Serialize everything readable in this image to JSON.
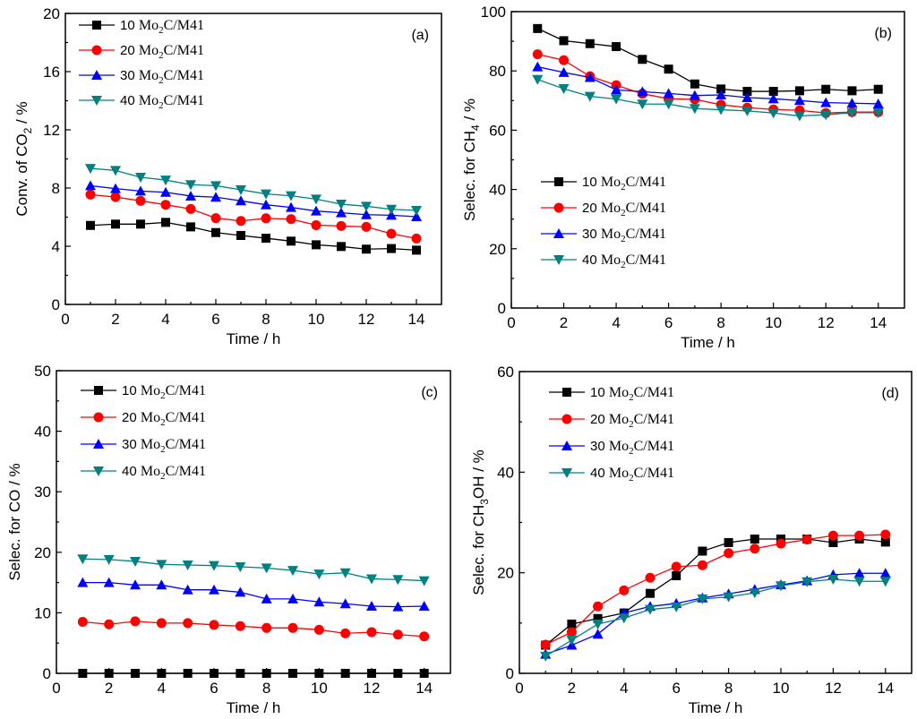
{
  "chart_data": [
    {
      "panel": "(a)",
      "type": "line",
      "xlabel": "Time / h",
      "ylabel": {
        "main": "Conv. of CO",
        "sub": "2",
        "suffix": " / %"
      },
      "xlim": [
        0,
        15
      ],
      "ylim": [
        0,
        20
      ],
      "xticks": [
        0,
        2,
        4,
        6,
        8,
        10,
        12,
        14
      ],
      "yticks": [
        0,
        4,
        8,
        12,
        16,
        20
      ],
      "legend_position": "top-left",
      "x": [
        1,
        2,
        3,
        4,
        5,
        6,
        7,
        8,
        9,
        10,
        11,
        12,
        13,
        14
      ],
      "series": [
        {
          "name": "10 Mo2C/M41",
          "values": [
            5.43,
            5.52,
            5.52,
            5.64,
            5.33,
            4.94,
            4.74,
            4.55,
            4.35,
            4.1,
            3.98,
            3.8,
            3.84,
            3.73
          ]
        },
        {
          "name": "20 Mo2C/M41",
          "values": [
            7.55,
            7.38,
            7.12,
            6.85,
            6.56,
            5.93,
            5.74,
            5.92,
            5.86,
            5.45,
            5.39,
            5.33,
            4.86,
            4.53
          ]
        },
        {
          "name": "30 Mo2C/M41",
          "values": [
            8.16,
            7.96,
            7.79,
            7.71,
            7.45,
            7.37,
            7.12,
            6.85,
            6.67,
            6.42,
            6.3,
            6.17,
            6.13,
            6.03
          ]
        },
        {
          "name": "40 Mo2C/M41",
          "values": [
            9.35,
            9.21,
            8.74,
            8.55,
            8.23,
            8.16,
            7.88,
            7.59,
            7.47,
            7.24,
            6.89,
            6.75,
            6.54,
            6.46
          ]
        }
      ]
    },
    {
      "panel": "(b)",
      "type": "line",
      "xlabel": "Time / h",
      "ylabel": {
        "main": "Selec. for CH",
        "sub": "4",
        "suffix": " / %"
      },
      "xlim": [
        0,
        15
      ],
      "ylim": [
        0,
        100
      ],
      "xticks": [
        0,
        2,
        4,
        6,
        8,
        10,
        12,
        14
      ],
      "yticks": [
        0,
        20,
        40,
        60,
        80,
        100
      ],
      "legend_position": "center-left",
      "x": [
        1,
        2,
        3,
        4,
        5,
        6,
        7,
        8,
        9,
        10,
        11,
        12,
        13,
        14
      ],
      "series": [
        {
          "name": "10 Mo2C/M41",
          "values": [
            94.3,
            90.2,
            89.2,
            88.2,
            83.9,
            80.6,
            75.6,
            73.9,
            73.1,
            73.1,
            73.3,
            73.8,
            73.3,
            73.8
          ]
        },
        {
          "name": "20 Mo2C/M41",
          "values": [
            85.6,
            83.6,
            78.2,
            75.2,
            72.3,
            70.6,
            70.4,
            68.6,
            67.6,
            67.0,
            66.7,
            65.8,
            66.1,
            66.1
          ]
        },
        {
          "name": "30 Mo2C/M41",
          "values": [
            81.4,
            79.5,
            77.8,
            73.6,
            73.0,
            72.4,
            71.7,
            71.9,
            71.0,
            70.6,
            70.0,
            69.3,
            69.1,
            68.9
          ]
        },
        {
          "name": "40 Mo2C/M41",
          "values": [
            77.1,
            74.0,
            71.4,
            70.5,
            68.8,
            68.8,
            67.3,
            66.9,
            66.5,
            65.8,
            64.8,
            65.2,
            65.9,
            65.9
          ]
        }
      ]
    },
    {
      "panel": "(c)",
      "type": "line",
      "xlabel": "Time / h",
      "ylabel": {
        "main": "Selec. for CO",
        "sub": "",
        "suffix": " / %"
      },
      "xlim": [
        0,
        15
      ],
      "ylim": [
        0,
        50
      ],
      "xticks": [
        0,
        2,
        4,
        6,
        8,
        10,
        12,
        14
      ],
      "yticks": [
        0,
        10,
        20,
        30,
        40,
        50
      ],
      "legend_position": "top-left",
      "x": [
        1,
        2,
        3,
        4,
        5,
        6,
        7,
        8,
        9,
        10,
        11,
        12,
        13,
        14
      ],
      "series": [
        {
          "name": "10 Mo2C/M41",
          "values": [
            0,
            0,
            0,
            0,
            0,
            0,
            0,
            0,
            0,
            0,
            0,
            0,
            0,
            0
          ]
        },
        {
          "name": "20 Mo2C/M41",
          "values": [
            8.5,
            8.1,
            8.6,
            8.3,
            8.3,
            8.0,
            7.8,
            7.5,
            7.5,
            7.2,
            6.6,
            6.8,
            6.4,
            6.1
          ]
        },
        {
          "name": "30 Mo2C/M41",
          "values": [
            15.0,
            15.0,
            14.6,
            14.6,
            13.8,
            13.8,
            13.4,
            12.3,
            12.3,
            11.8,
            11.5,
            11.1,
            11.0,
            11.1
          ]
        },
        {
          "name": "40 Mo2C/M41",
          "values": [
            18.9,
            18.8,
            18.5,
            18.0,
            17.9,
            17.8,
            17.6,
            17.4,
            17.0,
            16.4,
            16.6,
            15.6,
            15.5,
            15.3
          ]
        }
      ]
    },
    {
      "panel": "(d)",
      "type": "line",
      "xlabel": "Time / h",
      "ylabel": {
        "main": "Selec. for CH",
        "sub": "3",
        "suffix": "OH / %"
      },
      "xlim": [
        0,
        15
      ],
      "ylim": [
        0,
        60
      ],
      "xticks": [
        0,
        2,
        4,
        6,
        8,
        10,
        12,
        14
      ],
      "yticks": [
        0,
        20,
        40,
        60
      ],
      "legend_position": "top-left",
      "x": [
        1,
        2,
        3,
        4,
        5,
        6,
        7,
        8,
        9,
        10,
        11,
        12,
        13,
        14
      ],
      "series": [
        {
          "name": "10 Mo2C/M41",
          "values": [
            5.6,
            9.8,
            10.9,
            12.0,
            15.9,
            19.4,
            24.3,
            26.0,
            26.7,
            26.7,
            26.7,
            26.0,
            26.7,
            26.1
          ]
        },
        {
          "name": "20 Mo2C/M41",
          "values": [
            5.7,
            8.2,
            13.3,
            16.5,
            19.0,
            21.2,
            21.5,
            23.9,
            24.8,
            25.8,
            26.6,
            27.4,
            27.4,
            27.6
          ]
        },
        {
          "name": "30 Mo2C/M41",
          "values": [
            3.8,
            5.6,
            7.8,
            12.0,
            13.3,
            13.9,
            15.0,
            15.8,
            16.7,
            17.6,
            18.4,
            19.6,
            19.9,
            19.9
          ]
        },
        {
          "name": "40 Mo2C/M41",
          "values": [
            3.4,
            6.6,
            9.8,
            11.0,
            12.7,
            13.2,
            14.8,
            15.2,
            16.0,
            17.4,
            18.2,
            18.7,
            18.3,
            18.3
          ]
        }
      ]
    }
  ],
  "legend": [
    {
      "prefix": "10 ",
      "label": "Mo",
      "sub": "2",
      "suffix": "C/M41",
      "color": "#000000",
      "marker": "square"
    },
    {
      "prefix": "20 ",
      "label": "Mo",
      "sub": "2",
      "suffix": "C/M41",
      "color": "#ff0000",
      "marker": "circle"
    },
    {
      "prefix": "30 ",
      "label": "Mo",
      "sub": "2",
      "suffix": "C/M41",
      "color": "#0000ff",
      "marker": "triangle-up"
    },
    {
      "prefix": "40 ",
      "label": "Mo",
      "sub": "2",
      "suffix": "C/M41",
      "color": "#008080",
      "marker": "triangle-down"
    }
  ]
}
